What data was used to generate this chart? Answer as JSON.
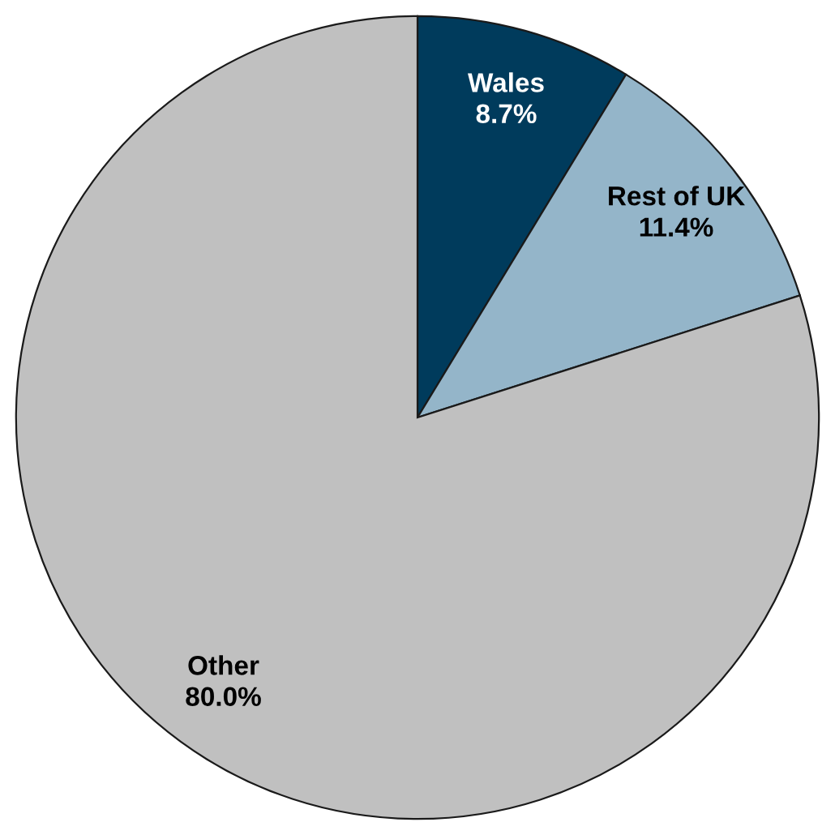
{
  "chart_data": {
    "type": "pie",
    "categories": [
      "Wales",
      "Rest of UK",
      "Other"
    ],
    "values": [
      8.7,
      11.4,
      80.0
    ],
    "value_labels": [
      "8.7%",
      "11.4%",
      "80.0%"
    ],
    "colors": [
      "#003b5c",
      "#94b5c9",
      "#c0c0c0"
    ]
  }
}
